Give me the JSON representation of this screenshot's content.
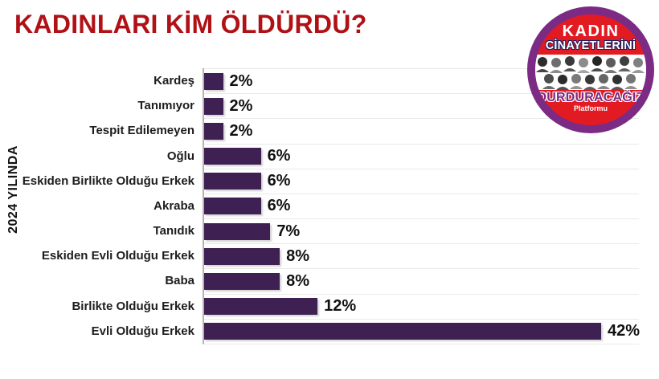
{
  "title": "KADINLARI KİM ÖLDÜRDÜ?",
  "side_label": "2024 YILINDA",
  "colors": {
    "title": "#b01116",
    "bar": "#3f2052",
    "gridline": "#e9e9e9",
    "axis": "#b3b3b3",
    "logo_purple": "#7b2b84",
    "logo_red": "#e21b23"
  },
  "logo": {
    "line1": "KADIN",
    "line2": "CİNAYETLERİNİ",
    "line3": "DURDURACAĞIZ",
    "line4": "Platformu"
  },
  "chart_data": {
    "type": "bar",
    "orientation": "horizontal",
    "title": "KADINLARI KİM ÖLDÜRDÜ?",
    "ylabel": "2024 YILINDA",
    "xlim": [
      0,
      46
    ],
    "grid": true,
    "bar_color": "#3f2052",
    "categories": [
      "Kardeş",
      "Tanımıyor",
      "Tespit Edilemeyen",
      "Oğlu",
      "Eskiden Birlikte Olduğu Erkek",
      "Akraba",
      "Tanıdık",
      "Eskiden Evli Olduğu Erkek",
      "Baba",
      "Birlikte Olduğu Erkek",
      "Evli Olduğu Erkek"
    ],
    "values": [
      2,
      2,
      2,
      6,
      6,
      6,
      7,
      8,
      8,
      12,
      42
    ],
    "value_labels": [
      "2%",
      "2%",
      "2%",
      "6%",
      "6%",
      "6%",
      "7%",
      "8%",
      "8%",
      "12%",
      "42%"
    ]
  }
}
